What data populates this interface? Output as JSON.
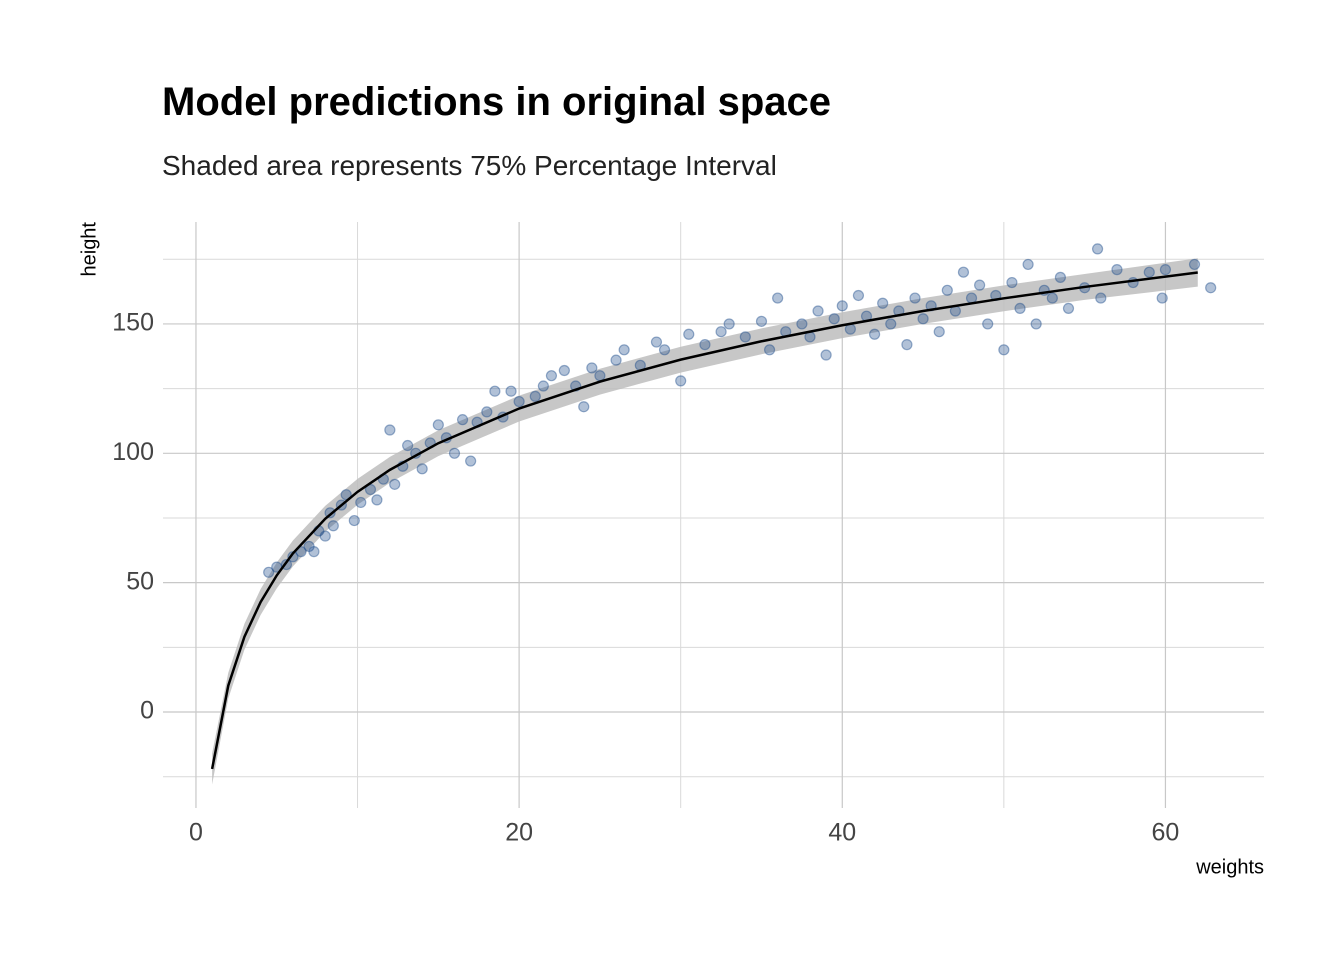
{
  "chart_data": {
    "type": "scatter",
    "title": "Model predictions in original space",
    "subtitle": "Shaded area represents 75% Percentage Interval",
    "x_label": "weights",
    "y_label": "height",
    "xlim": [
      -2.04,
      66.1
    ],
    "ylim": [
      -37.1,
      189.4
    ],
    "xticks": [
      0,
      20,
      40,
      60
    ],
    "yticks": [
      0,
      50,
      100,
      150
    ],
    "x_minor_ticks": [
      10,
      30,
      50
    ],
    "y_minor_ticks": [
      -25,
      25,
      75,
      125,
      175
    ],
    "grid": true,
    "points": {
      "color": "#1f4e8c",
      "x": [
        4.5,
        5.0,
        5.6,
        6.0,
        6.5,
        7.0,
        7.3,
        7.6,
        8.0,
        8.3,
        8.5,
        9.0,
        9.3,
        9.8,
        10.2,
        10.8,
        11.2,
        11.6,
        12.0,
        12.3,
        12.8,
        13.1,
        13.6,
        14.0,
        14.5,
        15.0,
        15.5,
        16.0,
        16.5,
        17.0,
        17.4,
        18.0,
        18.5,
        19.0,
        19.5,
        20.0,
        21.0,
        21.5,
        22.0,
        22.8,
        23.5,
        24.0,
        24.5,
        25.0,
        26.0,
        26.5,
        27.5,
        28.5,
        29.0,
        30.0,
        30.5,
        31.5,
        32.5,
        33.0,
        34.0,
        35.0,
        35.5,
        36.0,
        36.5,
        37.5,
        38.0,
        38.5,
        39.0,
        39.5,
        40.0,
        40.5,
        41.0,
        41.5,
        42.0,
        42.5,
        43.0,
        43.5,
        44.0,
        44.5,
        45.0,
        45.5,
        46.0,
        46.5,
        47.0,
        47.5,
        48.0,
        48.5,
        49.0,
        49.5,
        50.0,
        50.5,
        51.0,
        51.5,
        52.0,
        52.5,
        53.0,
        53.5,
        54.0,
        55.0,
        55.8,
        56.0,
        57.0,
        58.0,
        59.0,
        59.8,
        60.0,
        61.8,
        62.8
      ],
      "y": [
        54,
        56,
        57,
        60,
        62,
        64,
        62,
        70,
        68,
        77,
        72,
        80,
        84,
        74,
        81,
        86,
        82,
        90,
        109,
        88,
        95,
        103,
        100,
        94,
        104,
        111,
        106,
        100,
        113,
        97,
        112,
        116,
        124,
        114,
        124,
        120,
        122,
        126,
        130,
        132,
        126,
        118,
        133,
        130,
        136,
        140,
        134,
        143,
        140,
        128,
        146,
        142,
        147,
        150,
        145,
        151,
        140,
        160,
        147,
        150,
        145,
        155,
        138,
        152,
        157,
        148,
        161,
        153,
        146,
        158,
        150,
        155,
        142,
        160,
        152,
        157,
        147,
        163,
        155,
        170,
        160,
        165,
        150,
        161,
        140,
        166,
        156,
        173,
        150,
        163,
        160,
        168,
        156,
        164,
        179,
        160,
        171,
        166,
        170,
        160,
        171,
        173,
        164
      ]
    },
    "fit": {
      "color": "#000000",
      "band_color": "#bdbdbd",
      "x": [
        1,
        2,
        3,
        4,
        5,
        6,
        8,
        10,
        12,
        15,
        20,
        25,
        30,
        35,
        40,
        45,
        50,
        55,
        62
      ],
      "y": [
        -22,
        10.2,
        29.1,
        42.5,
        52.8,
        61.3,
        74.7,
        85.1,
        93.6,
        103.9,
        117.3,
        127.7,
        136.2,
        143.3,
        149.5,
        155.0,
        159.9,
        164.3,
        169.9
      ],
      "lower": [
        -28,
        5.2,
        24.1,
        37.5,
        47.8,
        56.3,
        69.7,
        80.1,
        88.6,
        98.9,
        112.3,
        122.7,
        131.2,
        138.3,
        144.5,
        150.0,
        154.9,
        159.3,
        164.4
      ],
      "upper": [
        -16,
        15.2,
        34.1,
        47.5,
        57.8,
        66.3,
        79.7,
        90.1,
        98.6,
        108.9,
        122.3,
        132.7,
        141.2,
        148.3,
        154.5,
        160.0,
        164.9,
        169.3,
        175.4
      ]
    }
  }
}
